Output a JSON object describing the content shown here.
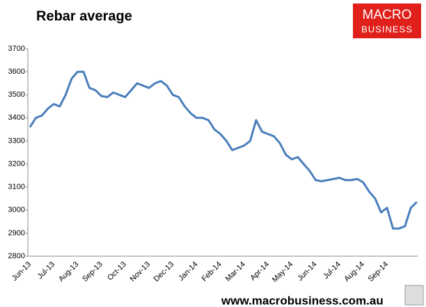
{
  "chart_data": {
    "type": "line",
    "title": "Rebar average",
    "categories": [
      "Jun-13",
      null,
      null,
      null,
      "Jul-13",
      null,
      null,
      null,
      "Aug-13",
      null,
      null,
      null,
      "Sep-13",
      null,
      null,
      null,
      "Oct-13",
      null,
      null,
      null,
      "Nov-13",
      null,
      null,
      null,
      "Dec-13",
      null,
      null,
      null,
      "Jan-14",
      null,
      null,
      null,
      "Feb-14",
      null,
      null,
      null,
      "Mar-14",
      null,
      null,
      null,
      "Apr-14",
      null,
      null,
      null,
      "May-14",
      null,
      null,
      null,
      "Jun-14",
      null,
      null,
      null,
      "Jul-14",
      null,
      null,
      null,
      "Aug-14",
      null,
      null,
      null,
      "Sep-14",
      null,
      null,
      null,
      null,
      null
    ],
    "values": [
      3360,
      3400,
      3410,
      3440,
      3460,
      3450,
      3500,
      3570,
      3600,
      3600,
      3530,
      3520,
      3495,
      3490,
      3510,
      3500,
      3490,
      3520,
      3550,
      3540,
      3530,
      3550,
      3560,
      3540,
      3500,
      3490,
      3450,
      3420,
      3400,
      3400,
      3390,
      3350,
      3330,
      3300,
      3260,
      3270,
      3280,
      3300,
      3390,
      3340,
      3330,
      3320,
      3290,
      3240,
      3220,
      3230,
      3200,
      3170,
      3130,
      3125,
      3130,
      3135,
      3140,
      3130,
      3130,
      3135,
      3120,
      3080,
      3050,
      2990,
      3010,
      2920,
      2920,
      2930,
      3010,
      3035
    ],
    "color": "#4a7ebb",
    "ylim": [
      2800,
      3700
    ],
    "yticks": [
      2800,
      2900,
      3000,
      3100,
      3200,
      3300,
      3400,
      3500,
      3600,
      3700
    ],
    "grid": false
  },
  "branding": {
    "logo_top": "MACRO",
    "logo_bottom": "BUSINESS",
    "footer": "www.macrobusiness.com.au"
  }
}
